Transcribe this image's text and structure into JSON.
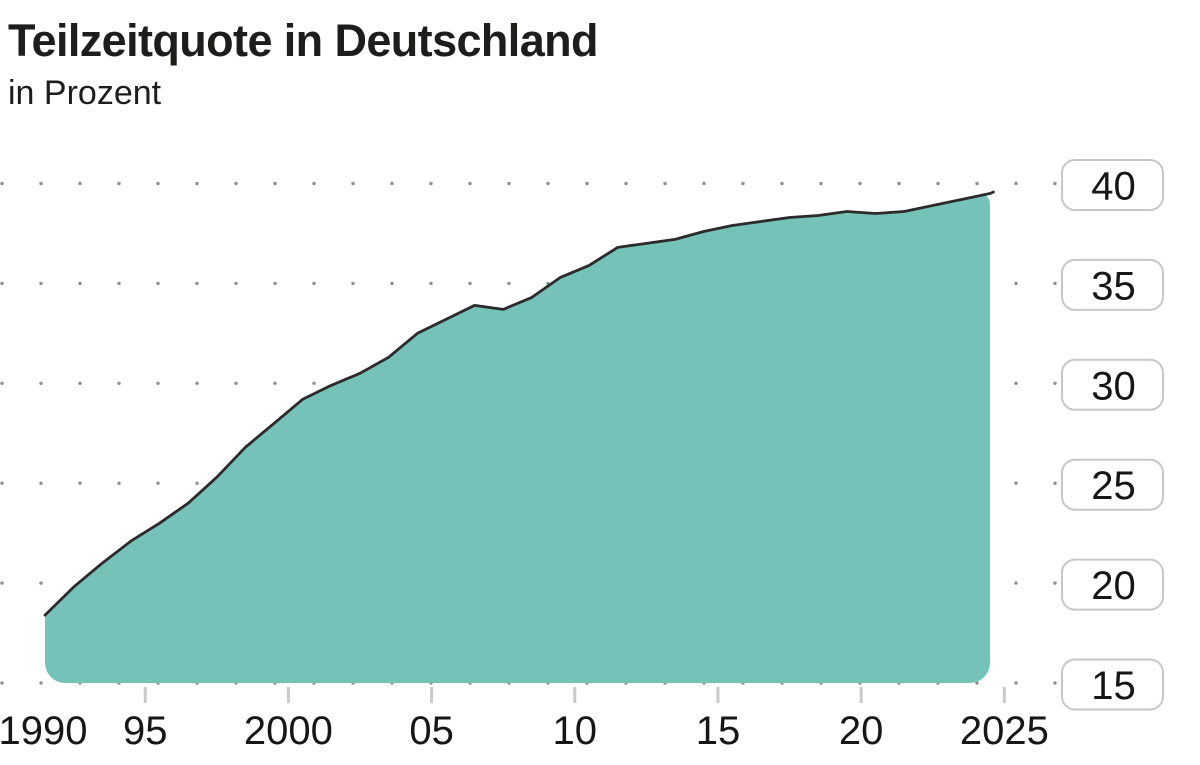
{
  "header": {
    "title": "Teilzeitquote in Deutschland",
    "subtitle": "in Prozent"
  },
  "chart_data": {
    "type": "area",
    "title": "Teilzeitquote in Deutschland",
    "subtitle": "in Prozent",
    "unit": "Prozent",
    "x": [
      1991,
      1992,
      1993,
      1994,
      1995,
      1996,
      1997,
      1998,
      1999,
      2000,
      2001,
      2002,
      2003,
      2004,
      2005,
      2006,
      2007,
      2008,
      2009,
      2010,
      2011,
      2012,
      2013,
      2014,
      2015,
      2016,
      2017,
      2018,
      2019,
      2020,
      2021,
      2022,
      2023,
      2024
    ],
    "series": [
      {
        "name": "Teilzeitquote",
        "values": [
          18.4,
          19.8,
          21.0,
          22.1,
          23.0,
          24.0,
          25.3,
          26.8,
          28.0,
          29.2,
          29.9,
          30.5,
          31.3,
          32.5,
          33.2,
          33.9,
          33.7,
          34.3,
          35.3,
          35.9,
          36.8,
          37.0,
          37.2,
          37.6,
          37.9,
          38.1,
          38.3,
          38.4,
          38.6,
          38.5,
          38.6,
          38.9,
          39.2,
          39.5
        ]
      }
    ],
    "x_tick_labels": [
      {
        "label": "1990",
        "year": 1990,
        "tick": false
      },
      {
        "label": "95",
        "year": 1995,
        "tick": true
      },
      {
        "label": "2000",
        "year": 2000,
        "tick": true
      },
      {
        "label": "05",
        "year": 2005,
        "tick": true
      },
      {
        "label": "10",
        "year": 2010,
        "tick": true
      },
      {
        "label": "15",
        "year": 2015,
        "tick": true
      },
      {
        "label": "20",
        "year": 2020,
        "tick": true
      },
      {
        "label": "2025",
        "year": 2025,
        "tick": true
      }
    ],
    "y_ticks": [
      40,
      35,
      30,
      25,
      20,
      15
    ],
    "ylim": [
      15,
      40
    ],
    "xlim": [
      1990,
      2025
    ],
    "grid": "dotted-horizontal",
    "legend": "none",
    "colors": {
      "area_fill": "#75c3b8",
      "line": "#2b2b2b",
      "text": "#1d1d1b",
      "axis_text": "#161616",
      "grid_dot": "#8f8f8f",
      "tick_mark": "#c9c9c9",
      "ybox_border": "#c7c7c7",
      "ybox_fill": "#ffffff",
      "background": "#ffffff"
    }
  }
}
